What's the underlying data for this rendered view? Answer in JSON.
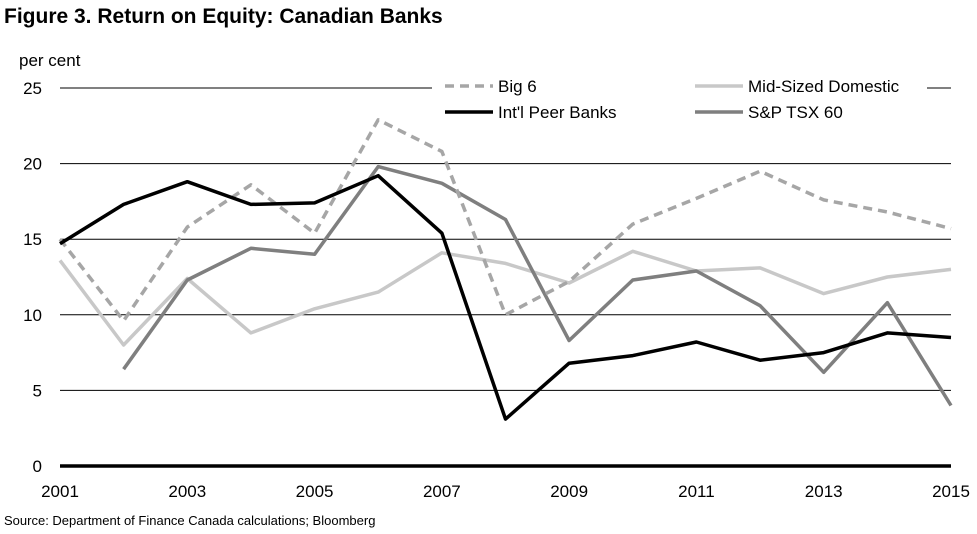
{
  "title": "Figure 3. Return on Equity: Canadian Banks",
  "source": "Source: Department of Finance Canada calculations; Bloomberg",
  "chart_data": {
    "type": "line",
    "ylabel": "per cent",
    "ylim": [
      0,
      25
    ],
    "yticks": [
      0,
      5,
      10,
      15,
      20,
      25
    ],
    "xlim": [
      2001,
      2015
    ],
    "xticks": [
      2001,
      2003,
      2005,
      2007,
      2009,
      2011,
      2013,
      2015
    ],
    "grid": true,
    "legend_position": "top",
    "x": [
      2001,
      2002,
      2003,
      2004,
      2005,
      2006,
      2007,
      2008,
      2009,
      2010,
      2011,
      2012,
      2013,
      2014,
      2015
    ],
    "series": [
      {
        "name": "Big 6",
        "color": "#a6a6a6",
        "dashed": true,
        "values": [
          15.0,
          9.6,
          15.8,
          18.6,
          15.4,
          22.9,
          20.8,
          10.0,
          12.2,
          16.0,
          17.7,
          19.5,
          17.6,
          16.8,
          15.7
        ]
      },
      {
        "name": "Mid-Sized Domestic",
        "color": "#c8c8c8",
        "dashed": false,
        "values": [
          13.6,
          8.0,
          12.4,
          8.8,
          10.4,
          11.5,
          14.1,
          13.4,
          12.1,
          14.2,
          12.9,
          13.1,
          11.4,
          12.5,
          13.0
        ]
      },
      {
        "name": "Int'l Peer Banks",
        "color": "#000000",
        "dashed": false,
        "values": [
          14.7,
          17.3,
          18.8,
          17.3,
          17.4,
          19.2,
          15.4,
          3.1,
          6.8,
          7.3,
          8.2,
          7.0,
          7.5,
          8.8,
          8.5
        ]
      },
      {
        "name": "S&P TSX 60",
        "color": "#7f7f7f",
        "dashed": false,
        "values": [
          null,
          6.4,
          12.3,
          14.4,
          14.0,
          19.8,
          18.7,
          16.3,
          8.3,
          12.3,
          12.9,
          10.6,
          6.2,
          10.8,
          4.0
        ]
      }
    ]
  }
}
